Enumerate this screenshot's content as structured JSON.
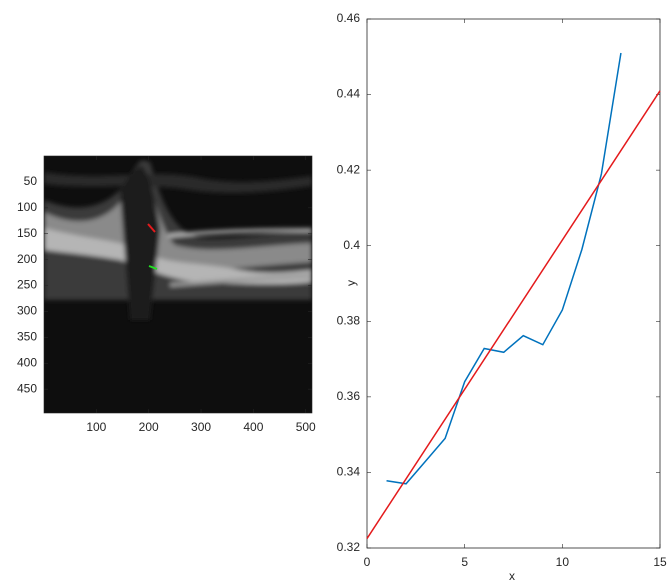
{
  "chart_data": [
    {
      "type": "image",
      "xlim": [
        0,
        512
      ],
      "ylim": [
        0,
        496
      ],
      "xticks": [
        100,
        200,
        300,
        400,
        500
      ],
      "yticks": [
        50,
        100,
        150,
        200,
        250,
        300,
        350,
        400,
        450
      ]
    },
    {
      "type": "line",
      "xlabel": "x",
      "ylabel": "y",
      "xlim": [
        0,
        15
      ],
      "ylim": [
        0.32,
        0.46
      ],
      "xticks": [
        0,
        5,
        10,
        15
      ],
      "yticks": [
        0.32,
        0.34,
        0.36,
        0.38,
        0.4,
        0.42,
        0.44,
        0.46
      ],
      "series": [
        {
          "color": "#0072bd",
          "x": [
            1,
            2,
            3,
            4,
            5,
            6,
            7,
            8,
            9,
            10,
            11,
            12,
            13
          ],
          "values": [
            0.3378,
            0.337,
            0.343,
            0.349,
            0.364,
            0.3728,
            0.3718,
            0.3762,
            0.3738,
            0.383,
            0.399,
            0.419,
            0.451
          ]
        },
        {
          "color": "#e41a1c",
          "x": [
            0,
            15
          ],
          "values": [
            0.3225,
            0.441
          ]
        }
      ]
    }
  ]
}
